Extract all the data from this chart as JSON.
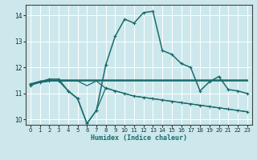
{
  "xlabel": "Humidex (Indice chaleur)",
  "background_color": "#cce8ec",
  "grid_color": "#ffffff",
  "line_color": "#1a6b6b",
  "xlim": [
    -0.5,
    23.5
  ],
  "ylim": [
    9.8,
    14.4
  ],
  "yticks": [
    10,
    11,
    12,
    13,
    14
  ],
  "xticks": [
    0,
    1,
    2,
    3,
    4,
    5,
    6,
    7,
    8,
    9,
    10,
    11,
    12,
    13,
    14,
    15,
    16,
    17,
    18,
    19,
    20,
    21,
    22,
    23
  ],
  "curve_x": [
    0,
    1,
    2,
    3,
    4,
    5,
    6,
    7,
    8,
    9,
    10,
    11,
    12,
    13,
    14,
    15,
    16,
    17,
    18,
    19,
    20,
    21,
    22,
    23
  ],
  "curve_y": [
    11.3,
    11.45,
    11.55,
    11.55,
    11.1,
    10.8,
    9.85,
    10.35,
    12.1,
    13.2,
    13.85,
    13.7,
    14.1,
    14.15,
    12.65,
    12.5,
    12.15,
    12.0,
    11.1,
    11.45,
    11.65,
    11.15,
    11.1,
    11.0
  ],
  "flat_x": [
    0,
    1,
    2,
    3,
    4,
    5,
    6,
    7,
    8,
    9,
    10,
    11,
    12,
    13,
    14,
    15,
    16,
    17,
    18,
    19,
    20,
    21,
    22,
    23
  ],
  "flat_y": [
    11.35,
    11.45,
    11.5,
    11.5,
    11.5,
    11.5,
    11.5,
    11.5,
    11.5,
    11.5,
    11.5,
    11.5,
    11.5,
    11.5,
    11.5,
    11.5,
    11.5,
    11.5,
    11.5,
    11.5,
    11.5,
    11.5,
    11.5,
    11.5
  ],
  "decline_x": [
    0,
    1,
    2,
    3,
    4,
    5,
    6,
    7,
    8,
    9,
    10,
    11,
    12,
    13,
    14,
    15,
    16,
    17,
    18,
    19,
    20,
    21,
    22,
    23
  ],
  "decline_y": [
    11.35,
    11.42,
    11.48,
    11.48,
    11.48,
    11.48,
    11.3,
    11.48,
    11.2,
    11.1,
    11.0,
    10.9,
    10.85,
    10.8,
    10.75,
    10.7,
    10.65,
    10.6,
    10.55,
    10.5,
    10.45,
    10.4,
    10.35,
    10.3
  ],
  "step_x": [
    0,
    1,
    2,
    3,
    4,
    5,
    6,
    7,
    8,
    9,
    10,
    11,
    12,
    13,
    14,
    15,
    16,
    17,
    18,
    19,
    20,
    21,
    22,
    23
  ],
  "step_y": [
    11.35,
    11.42,
    11.48,
    11.48,
    11.1,
    10.82,
    9.85,
    10.35,
    11.22,
    11.1,
    11.0,
    10.9,
    10.85,
    10.8,
    10.75,
    10.7,
    10.65,
    10.6,
    10.55,
    10.5,
    10.45,
    10.4,
    10.35,
    10.3
  ]
}
